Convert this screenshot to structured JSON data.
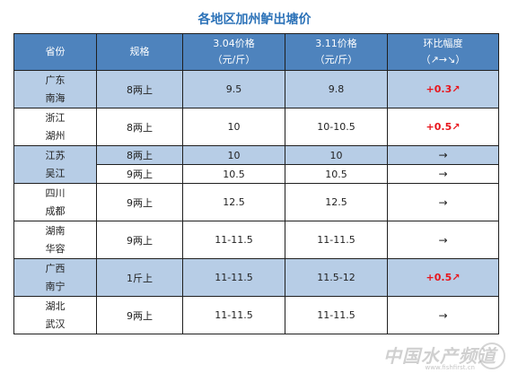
{
  "title": "各地区加州鲈出塘价",
  "header": {
    "region": "省份",
    "spec": "规格",
    "price1_line1": "3.04价格",
    "price1_line2": "（元/斤）",
    "price2_line1": "3.11价格",
    "price2_line2": "（元/斤）",
    "change_line1": "环比幅度",
    "change_line2": "（↗→↘）"
  },
  "rows": [
    {
      "province": "广东",
      "city": "南海",
      "spec": "8两上",
      "p1": "9.5",
      "p2": "9.8",
      "change": "+0.3↗",
      "trend": "up"
    },
    {
      "province": "浙江",
      "city": "湖州",
      "spec": "8两上",
      "p1": "10",
      "p2": "10-10.5",
      "change": "+0.5↗",
      "trend": "up"
    },
    {
      "province": "江苏",
      "city": "吴江",
      "spec": "8两上",
      "p1": "10",
      "p2": "10",
      "change": "→",
      "trend": "flat"
    },
    {
      "spec": "9两上",
      "p1": "10.5",
      "p2": "10.5",
      "change": "→",
      "trend": "flat"
    },
    {
      "province": "四川",
      "city": "成都",
      "spec": "9两上",
      "p1": "12.5",
      "p2": "12.5",
      "change": "→",
      "trend": "flat"
    },
    {
      "province": "湖南",
      "city": "华容",
      "spec": "9两上",
      "p1": "11-11.5",
      "p2": "11-11.5",
      "change": "→",
      "trend": "flat"
    },
    {
      "province": "广西",
      "city": "南宁",
      "spec": "1斤上",
      "p1": "11-11.5",
      "p2": "11.5-12",
      "change": "+0.5↗",
      "trend": "up"
    },
    {
      "province": "湖北",
      "city": "武汉",
      "spec": "9两上",
      "p1": "11-11.5",
      "p2": "11-11.5",
      "change": "→",
      "trend": "flat"
    }
  ],
  "watermark": {
    "text": "中国水产频道",
    "url": "www.fishfirst.cn"
  },
  "colors": {
    "header_bg": "#4e83bd",
    "row_blue": "#b7cde6",
    "up": "#e8141b",
    "title": "#2c72b8"
  }
}
